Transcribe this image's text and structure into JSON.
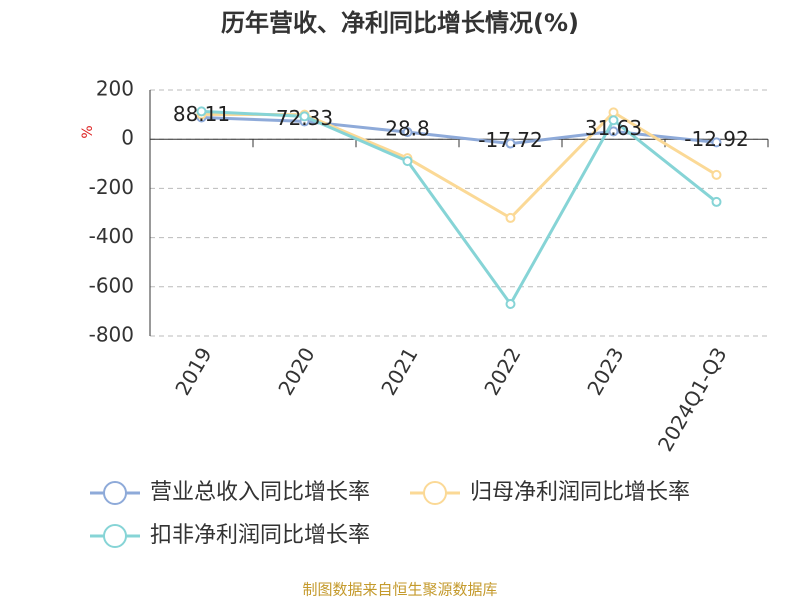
{
  "chart_data": {
    "type": "line",
    "title": "历年营收、净利同比增长情况(%)",
    "y_label": "%",
    "categories": [
      "2019",
      "2020",
      "2021",
      "2022",
      "2023",
      "2024Q1-Q3"
    ],
    "series": [
      {
        "name": "营业总收入同比增长率",
        "color": "#8eaad9",
        "values": [
          88.11,
          72.33,
          28.8,
          -17.72,
          31.63,
          -12.92
        ],
        "show_labels": true
      },
      {
        "name": "归母净利润同比增长率",
        "color": "#fbd996",
        "values": [
          101,
          100,
          -77,
          -320,
          109,
          -145
        ]
      },
      {
        "name": "扣非净利润同比增长率",
        "color": "#86d4d6",
        "values": [
          113,
          93,
          -89,
          -670,
          77,
          -255
        ]
      }
    ],
    "ylim": [
      -800,
      200
    ],
    "yticks": [
      -800,
      -600,
      -400,
      -200,
      0,
      200
    ],
    "grid": true,
    "footer": "制图数据来自恒生聚源数据库"
  }
}
